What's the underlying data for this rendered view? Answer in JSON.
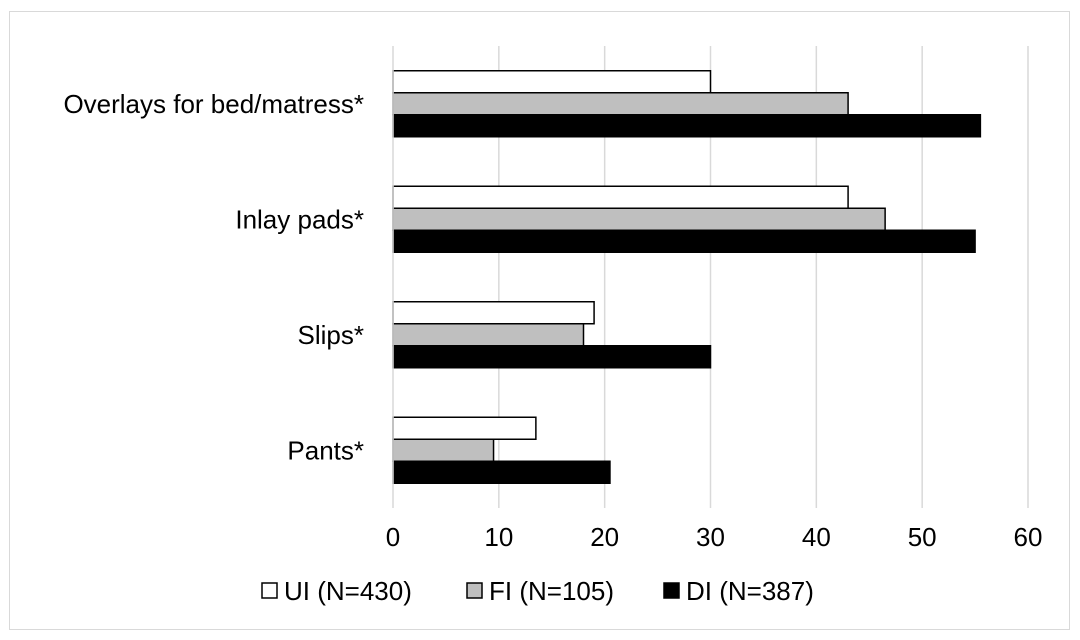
{
  "chart_data": {
    "type": "bar",
    "orientation": "horizontal",
    "title": "",
    "xlabel": "",
    "ylabel": "",
    "xlim": [
      0,
      60
    ],
    "x_ticks": [
      0,
      10,
      20,
      30,
      40,
      50,
      60
    ],
    "grid": "vertical",
    "legend_position": "bottom",
    "categories": [
      "Overlays for bed/matress*",
      "Inlay pads*",
      "Slips*",
      "Pants*"
    ],
    "series": [
      {
        "name": "UI (N=430)",
        "color": "#ffffff",
        "values": [
          30,
          43,
          19,
          13.5
        ]
      },
      {
        "name": "FI (N=105)",
        "color": "#bfbfbf",
        "values": [
          43,
          46.5,
          18,
          9.5
        ]
      },
      {
        "name": "DI (N=387)",
        "color": "#000000",
        "values": [
          55.5,
          55,
          30,
          20.5
        ]
      }
    ]
  }
}
